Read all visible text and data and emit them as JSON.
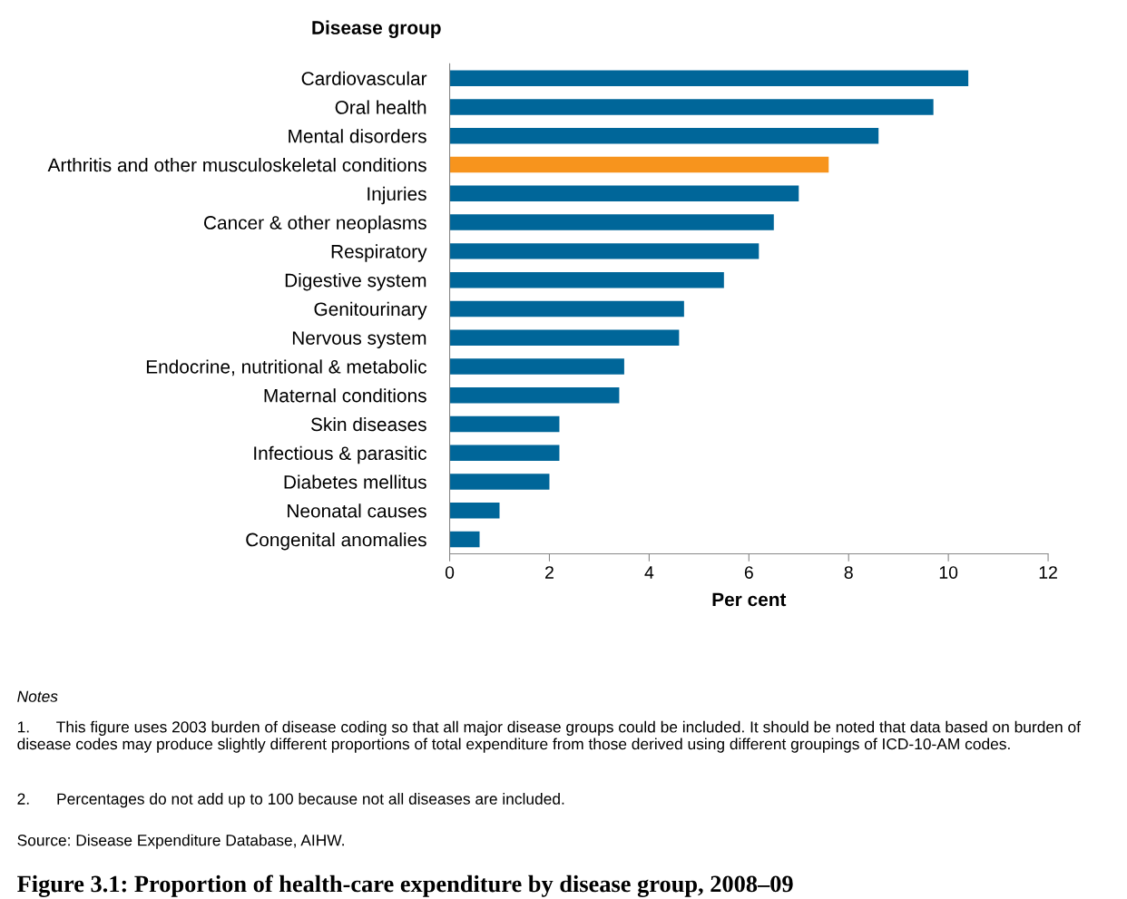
{
  "chart_data": {
    "type": "bar",
    "orientation": "horizontal",
    "title": "Figure 3.1: Proportion of health-care expenditure by disease group, 2008–09",
    "ylabel": "Disease group",
    "xlabel": "Per cent",
    "categories": [
      "Cardiovascular",
      "Oral health",
      "Mental disorders",
      "Arthritis and other musculoskeletal conditions",
      "Injuries",
      "Cancer & other neoplasms",
      "Respiratory",
      "Digestive system",
      "Genitourinary",
      "Nervous system",
      "Endocrine, nutritional & metabolic",
      "Maternal conditions",
      "Skin diseases",
      "Infectious & parasitic",
      "Diabetes mellitus",
      "Neonatal causes",
      "Congenital anomalies"
    ],
    "values": [
      10.4,
      9.7,
      8.6,
      7.6,
      7.0,
      6.5,
      6.2,
      5.5,
      4.7,
      4.6,
      3.5,
      3.4,
      2.2,
      2.2,
      2.0,
      1.0,
      0.6
    ],
    "colors": [
      "#006699",
      "#006699",
      "#006699",
      "#f7941d",
      "#006699",
      "#006699",
      "#006699",
      "#006699",
      "#006699",
      "#006699",
      "#006699",
      "#006699",
      "#006699",
      "#006699",
      "#006699",
      "#006699",
      "#006699"
    ],
    "xlim": [
      0,
      12
    ],
    "xticks": [
      0,
      2,
      4,
      6,
      8,
      10,
      12
    ],
    "grid": false,
    "legend": false,
    "annotations": [
      "Notes",
      "1.      This figure uses 2003 burden of disease coding so that all major disease groups could be included. It should be noted that data based on burden of disease codes may produce slightly different proportions of total expenditure from those derived using different groupings of ICD-10-AM codes.",
      "2.      Percentages do not add up to 100 because not all diseases are included.",
      "Source: Disease Expenditure Database, AIHW."
    ]
  }
}
